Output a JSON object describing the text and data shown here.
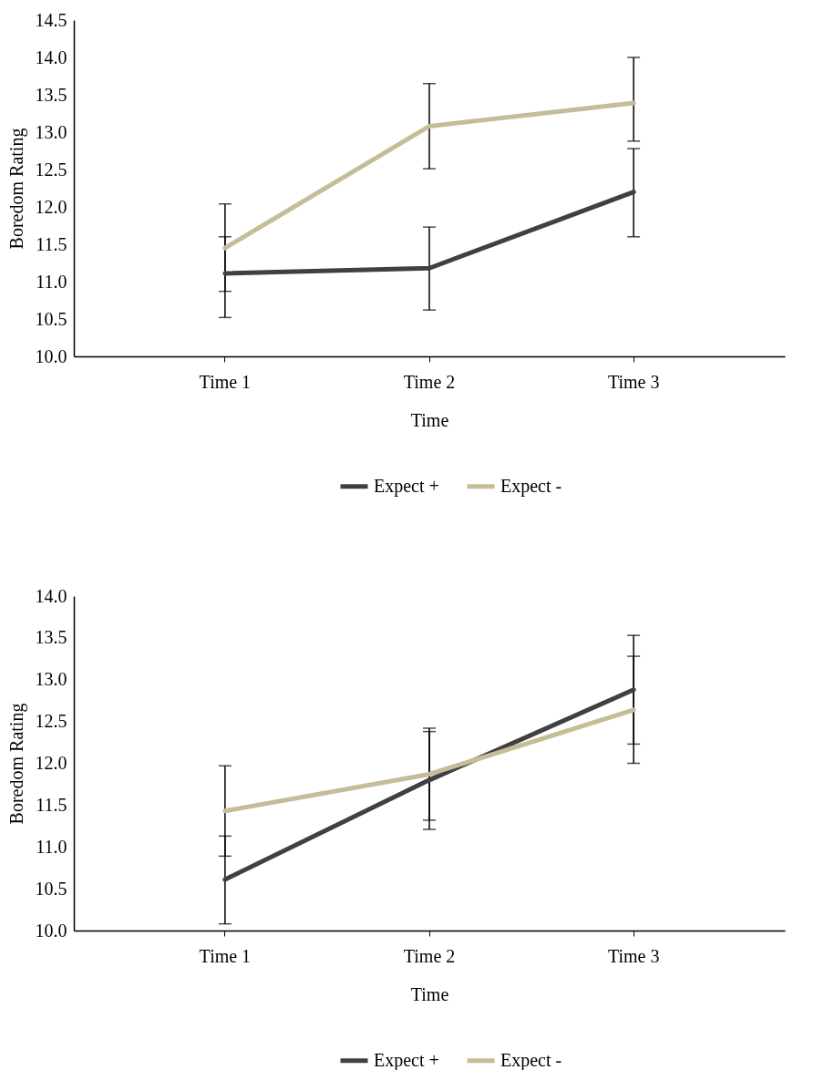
{
  "chart_data": [
    {
      "type": "line",
      "xlabel": "Time",
      "ylabel": "Boredom Rating",
      "categories": [
        "Time 1",
        "Time 2",
        "Time 3"
      ],
      "ylim": [
        10.0,
        14.5
      ],
      "yticks": [
        {
          "value": 10,
          "label": "10.0"
        },
        {
          "value": 10.5,
          "label": "10.5"
        },
        {
          "value": 11,
          "label": "11.0"
        },
        {
          "value": 11.5,
          "label": "11.5"
        },
        {
          "value": 12,
          "label": "12.0"
        },
        {
          "value": 12.5,
          "label": "12.5"
        },
        {
          "value": 13,
          "label": "13.0"
        },
        {
          "value": 13.5,
          "label": "13.5"
        },
        {
          "value": 14,
          "label": "14.0"
        },
        {
          "value": 14.5,
          "label": "14.5"
        }
      ],
      "grid": false,
      "legend": "bottom",
      "marker": "none",
      "line_style": "solid",
      "series": [
        {
          "name": "Expect +",
          "color": "#404040",
          "values": [
            11.11,
            11.18,
            12.2
          ],
          "errors": [
            [
              10.52,
              11.6
            ],
            [
              10.62,
              11.73
            ],
            [
              11.6,
              12.78
            ]
          ]
        },
        {
          "name": "Expect -",
          "color": "#c4bd97",
          "values": [
            11.45,
            13.08,
            13.39
          ],
          "errors": [
            [
              10.87,
              12.04
            ],
            [
              12.51,
              13.65
            ],
            [
              12.88,
              14.0
            ]
          ]
        }
      ]
    },
    {
      "type": "line",
      "xlabel": "Time",
      "ylabel": "Boredom Rating",
      "categories": [
        "Time 1",
        "Time 2",
        "Time 3"
      ],
      "ylim": [
        10.0,
        14.0
      ],
      "yticks": [
        {
          "value": 10,
          "label": "10.0"
        },
        {
          "value": 10.5,
          "label": "10.5"
        },
        {
          "value": 11,
          "label": "11.0"
        },
        {
          "value": 11.5,
          "label": "11.5"
        },
        {
          "value": 12,
          "label": "12.0"
        },
        {
          "value": 12.5,
          "label": "12.5"
        },
        {
          "value": 13,
          "label": "13.0"
        },
        {
          "value": 13.5,
          "label": "13.5"
        },
        {
          "value": 14,
          "label": "14.0"
        }
      ],
      "grid": false,
      "legend": "bottom",
      "marker": "none",
      "line_style": "solid",
      "series": [
        {
          "name": "Expect +",
          "color": "#404040",
          "values": [
            10.61,
            11.8,
            12.88
          ],
          "errors": [
            [
              10.08,
              11.13
            ],
            [
              11.21,
              12.38
            ],
            [
              12.23,
              13.53
            ]
          ]
        },
        {
          "name": "Expect -",
          "color": "#c4bd97",
          "values": [
            11.43,
            11.87,
            12.64
          ],
          "errors": [
            [
              10.89,
              11.97
            ],
            [
              11.32,
              12.42
            ],
            [
              12.0,
              13.28
            ]
          ]
        }
      ]
    }
  ]
}
